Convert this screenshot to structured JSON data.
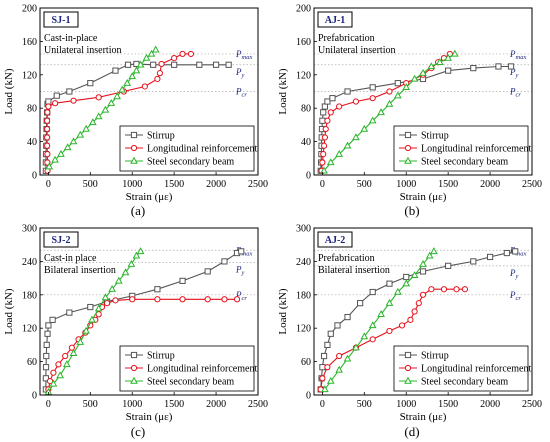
{
  "figure": {
    "colors": {
      "stirrup": "#555555",
      "longitudinal": "#e8111b",
      "beam": "#2bb52b",
      "tag": "#1a237e",
      "reference_line": "#aaaaaa"
    },
    "legend_labels": [
      "Stirrup",
      "Longitudinal reinforcement",
      "Steel secondary beam"
    ],
    "reference_labels": {
      "pmax": "P",
      "pmax_sub": "max",
      "py": "P",
      "py_sub": "y",
      "pcr": "P",
      "pcr_sub": "cr"
    }
  },
  "chart_data": [
    {
      "type": "line",
      "panel": "(a)",
      "tag": "SJ-1",
      "description": [
        "Cast-in-place",
        "Unilateral insertion"
      ],
      "xlabel": "Strain (με)",
      "ylabel": "Load (kN)",
      "xlim": [
        -100,
        2500
      ],
      "ylim": [
        0,
        200
      ],
      "xticks": [
        0,
        500,
        1000,
        1500,
        2000,
        2500
      ],
      "yticks": [
        0,
        40,
        80,
        120,
        160,
        200
      ],
      "reference_lines": {
        "pmax": 145,
        "py": 132,
        "pcr": 100
      },
      "legend": "bottom-right",
      "series": [
        {
          "name": "Stirrup",
          "marker": "square",
          "points": [
            [
              -30,
              5
            ],
            [
              -30,
              15
            ],
            [
              -28,
              25
            ],
            [
              -25,
              35
            ],
            [
              -25,
              45
            ],
            [
              -22,
              55
            ],
            [
              -20,
              65
            ],
            [
              -15,
              75
            ],
            [
              -10,
              85
            ],
            [
              0,
              88
            ],
            [
              100,
              95
            ],
            [
              250,
              100
            ],
            [
              500,
              110
            ],
            [
              800,
              125
            ],
            [
              950,
              132
            ],
            [
              1050,
              133
            ],
            [
              1250,
              132
            ],
            [
              1500,
              132
            ],
            [
              1800,
              132
            ],
            [
              2000,
              132
            ],
            [
              2150,
              132
            ]
          ]
        },
        {
          "name": "Longitudinal reinforcement",
          "marker": "circle",
          "points": [
            [
              -10,
              5
            ],
            [
              -12,
              15
            ],
            [
              -12,
              25
            ],
            [
              -15,
              35
            ],
            [
              -15,
              45
            ],
            [
              -15,
              55
            ],
            [
              -15,
              65
            ],
            [
              -12,
              75
            ],
            [
              0,
              82
            ],
            [
              80,
              86
            ],
            [
              300,
              89
            ],
            [
              600,
              93
            ],
            [
              900,
              100
            ],
            [
              1150,
              106
            ],
            [
              1300,
              115
            ],
            [
              1330,
              122
            ],
            [
              1350,
              133
            ],
            [
              1500,
              140
            ],
            [
              1600,
              145
            ],
            [
              1700,
              145
            ]
          ]
        },
        {
          "name": "Steel secondary beam",
          "marker": "triangle",
          "points": [
            [
              10,
              10
            ],
            [
              80,
              18
            ],
            [
              150,
              25
            ],
            [
              230,
              33
            ],
            [
              300,
              40
            ],
            [
              380,
              48
            ],
            [
              450,
              55
            ],
            [
              530,
              63
            ],
            [
              600,
              70
            ],
            [
              680,
              78
            ],
            [
              750,
              86
            ],
            [
              820,
              94
            ],
            [
              880,
              102
            ],
            [
              940,
              110
            ],
            [
              1000,
              118
            ],
            [
              1050,
              125
            ],
            [
              1100,
              132
            ],
            [
              1170,
              140
            ],
            [
              1230,
              145
            ],
            [
              1280,
              150
            ]
          ]
        }
      ]
    },
    {
      "type": "line",
      "panel": "(b)",
      "tag": "AJ-1",
      "description": [
        "Prefabrication",
        "Unilateral insertion"
      ],
      "xlabel": "Strain (με)",
      "ylabel": "Load (kN)",
      "xlim": [
        -100,
        2500
      ],
      "ylim": [
        0,
        200
      ],
      "xticks": [
        0,
        500,
        1000,
        1500,
        2000,
        2500
      ],
      "yticks": [
        0,
        40,
        80,
        120,
        160,
        200
      ],
      "reference_lines": {
        "pmax": 145,
        "py": 132,
        "pcr": 100
      },
      "legend": "bottom-right",
      "series": [
        {
          "name": "Stirrup",
          "marker": "square",
          "points": [
            [
              -20,
              5
            ],
            [
              -15,
              15
            ],
            [
              -12,
              25
            ],
            [
              -10,
              35
            ],
            [
              -8,
              45
            ],
            [
              -5,
              55
            ],
            [
              0,
              65
            ],
            [
              10,
              75
            ],
            [
              30,
              82
            ],
            [
              60,
              88
            ],
            [
              120,
              92
            ],
            [
              300,
              100
            ],
            [
              600,
              105
            ],
            [
              900,
              110
            ],
            [
              1200,
              115
            ],
            [
              1500,
              125
            ],
            [
              1800,
              128
            ],
            [
              2100,
              130
            ],
            [
              2250,
              130
            ]
          ]
        },
        {
          "name": "Longitudinal reinforcement",
          "marker": "circle",
          "points": [
            [
              -10,
              5
            ],
            [
              0,
              15
            ],
            [
              10,
              25
            ],
            [
              20,
              35
            ],
            [
              30,
              45
            ],
            [
              40,
              55
            ],
            [
              60,
              65
            ],
            [
              100,
              75
            ],
            [
              200,
              82
            ],
            [
              400,
              88
            ],
            [
              600,
              92
            ],
            [
              800,
              100
            ],
            [
              1000,
              110
            ],
            [
              1200,
              120
            ],
            [
              1300,
              128
            ],
            [
              1380,
              135
            ],
            [
              1450,
              140
            ],
            [
              1520,
              145
            ]
          ]
        },
        {
          "name": "Steel secondary beam",
          "marker": "triangle",
          "points": [
            [
              20,
              5
            ],
            [
              100,
              15
            ],
            [
              200,
              25
            ],
            [
              300,
              35
            ],
            [
              400,
              45
            ],
            [
              500,
              55
            ],
            [
              600,
              65
            ],
            [
              700,
              75
            ],
            [
              800,
              85
            ],
            [
              900,
              95
            ],
            [
              1000,
              105
            ],
            [
              1100,
              115
            ],
            [
              1200,
              122
            ],
            [
              1300,
              130
            ],
            [
              1400,
              135
            ],
            [
              1500,
              140
            ],
            [
              1580,
              145
            ]
          ]
        }
      ]
    },
    {
      "type": "line",
      "panel": "(c)",
      "tag": "SJ-2",
      "description": [
        "Cast-in place",
        "Bilateral insertion"
      ],
      "xlabel": "Strain (με)",
      "ylabel": "Load (kN)",
      "xlim": [
        -100,
        2500
      ],
      "ylim": [
        0,
        300
      ],
      "xticks": [
        0,
        500,
        1000,
        1500,
        2000,
        2500
      ],
      "yticks": [
        0,
        60,
        120,
        180,
        240,
        300
      ],
      "reference_lines": {
        "pmax": 260,
        "py": 238,
        "pcr": 180
      },
      "legend": "bottom-right",
      "series": [
        {
          "name": "Stirrup",
          "marker": "square",
          "points": [
            [
              -30,
              10
            ],
            [
              -30,
              30
            ],
            [
              -28,
              50
            ],
            [
              -25,
              70
            ],
            [
              -20,
              90
            ],
            [
              -10,
              110
            ],
            [
              0,
              125
            ],
            [
              50,
              135
            ],
            [
              250,
              148
            ],
            [
              500,
              158
            ],
            [
              700,
              168
            ],
            [
              1000,
              178
            ],
            [
              1300,
              190
            ],
            [
              1600,
              205
            ],
            [
              1900,
              222
            ],
            [
              2100,
              240
            ],
            [
              2250,
              255
            ],
            [
              2300,
              258
            ]
          ]
        },
        {
          "name": "Longitudinal reinforcement",
          "marker": "circle",
          "points": [
            [
              0,
              10
            ],
            [
              20,
              25
            ],
            [
              60,
              40
            ],
            [
              120,
              55
            ],
            [
              200,
              70
            ],
            [
              280,
              85
            ],
            [
              360,
              100
            ],
            [
              440,
              112
            ],
            [
              500,
              125
            ],
            [
              560,
              135
            ],
            [
              600,
              145
            ],
            [
              640,
              158
            ],
            [
              700,
              165
            ],
            [
              800,
              170
            ],
            [
              1000,
              172
            ],
            [
              1300,
              172
            ],
            [
              1600,
              172
            ],
            [
              1900,
              172
            ],
            [
              2100,
              172
            ],
            [
              2250,
              172
            ]
          ]
        },
        {
          "name": "Steel secondary beam",
          "marker": "triangle",
          "points": [
            [
              0,
              5
            ],
            [
              60,
              20
            ],
            [
              140,
              35
            ],
            [
              220,
              55
            ],
            [
              300,
              75
            ],
            [
              380,
              95
            ],
            [
              450,
              115
            ],
            [
              520,
              135
            ],
            [
              600,
              155
            ],
            [
              680,
              175
            ],
            [
              760,
              190
            ],
            [
              840,
              205
            ],
            [
              920,
              220
            ],
            [
              990,
              235
            ],
            [
              1050,
              250
            ],
            [
              1100,
              258
            ]
          ]
        }
      ]
    },
    {
      "type": "line",
      "panel": "(d)",
      "tag": "AJ-2",
      "description": [
        "Prefabrication",
        "Bilateral insertion"
      ],
      "xlabel": "Strain (με)",
      "ylabel": "Load (kN)",
      "xlim": [
        -100,
        2500
      ],
      "ylim": [
        0,
        300
      ],
      "xticks": [
        0,
        500,
        1000,
        1500,
        2000,
        2500
      ],
      "yticks": [
        0,
        60,
        120,
        180,
        240,
        300
      ],
      "reference_lines": {
        "pmax": 260,
        "py": 232,
        "pcr": 180
      },
      "legend": "bottom-right",
      "series": [
        {
          "name": "Stirrup",
          "marker": "square",
          "points": [
            [
              -20,
              10
            ],
            [
              -10,
              30
            ],
            [
              0,
              50
            ],
            [
              20,
              70
            ],
            [
              60,
              90
            ],
            [
              100,
              110
            ],
            [
              180,
              125
            ],
            [
              300,
              140
            ],
            [
              450,
              165
            ],
            [
              600,
              185
            ],
            [
              800,
              200
            ],
            [
              1000,
              212
            ],
            [
              1200,
              222
            ],
            [
              1500,
              232
            ],
            [
              1800,
              240
            ],
            [
              2000,
              248
            ],
            [
              2200,
              255
            ],
            [
              2300,
              258
            ]
          ]
        },
        {
          "name": "Longitudinal reinforcement",
          "marker": "circle",
          "points": [
            [
              -20,
              10
            ],
            [
              0,
              30
            ],
            [
              60,
              50
            ],
            [
              200,
              70
            ],
            [
              400,
              85
            ],
            [
              600,
              100
            ],
            [
              800,
              115
            ],
            [
              950,
              125
            ],
            [
              1050,
              135
            ],
            [
              1100,
              150
            ],
            [
              1150,
              165
            ],
            [
              1200,
              180
            ],
            [
              1300,
              190
            ],
            [
              1450,
              190
            ],
            [
              1600,
              190
            ],
            [
              1700,
              190
            ]
          ]
        },
        {
          "name": "Steel secondary beam",
          "marker": "triangle",
          "points": [
            [
              30,
              10
            ],
            [
              100,
              25
            ],
            [
              200,
              45
            ],
            [
              300,
              65
            ],
            [
              400,
              85
            ],
            [
              500,
              105
            ],
            [
              600,
              125
            ],
            [
              700,
              145
            ],
            [
              800,
              165
            ],
            [
              900,
              185
            ],
            [
              1000,
              200
            ],
            [
              1100,
              215
            ],
            [
              1200,
              235
            ],
            [
              1280,
              250
            ],
            [
              1330,
              258
            ]
          ]
        }
      ]
    }
  ]
}
